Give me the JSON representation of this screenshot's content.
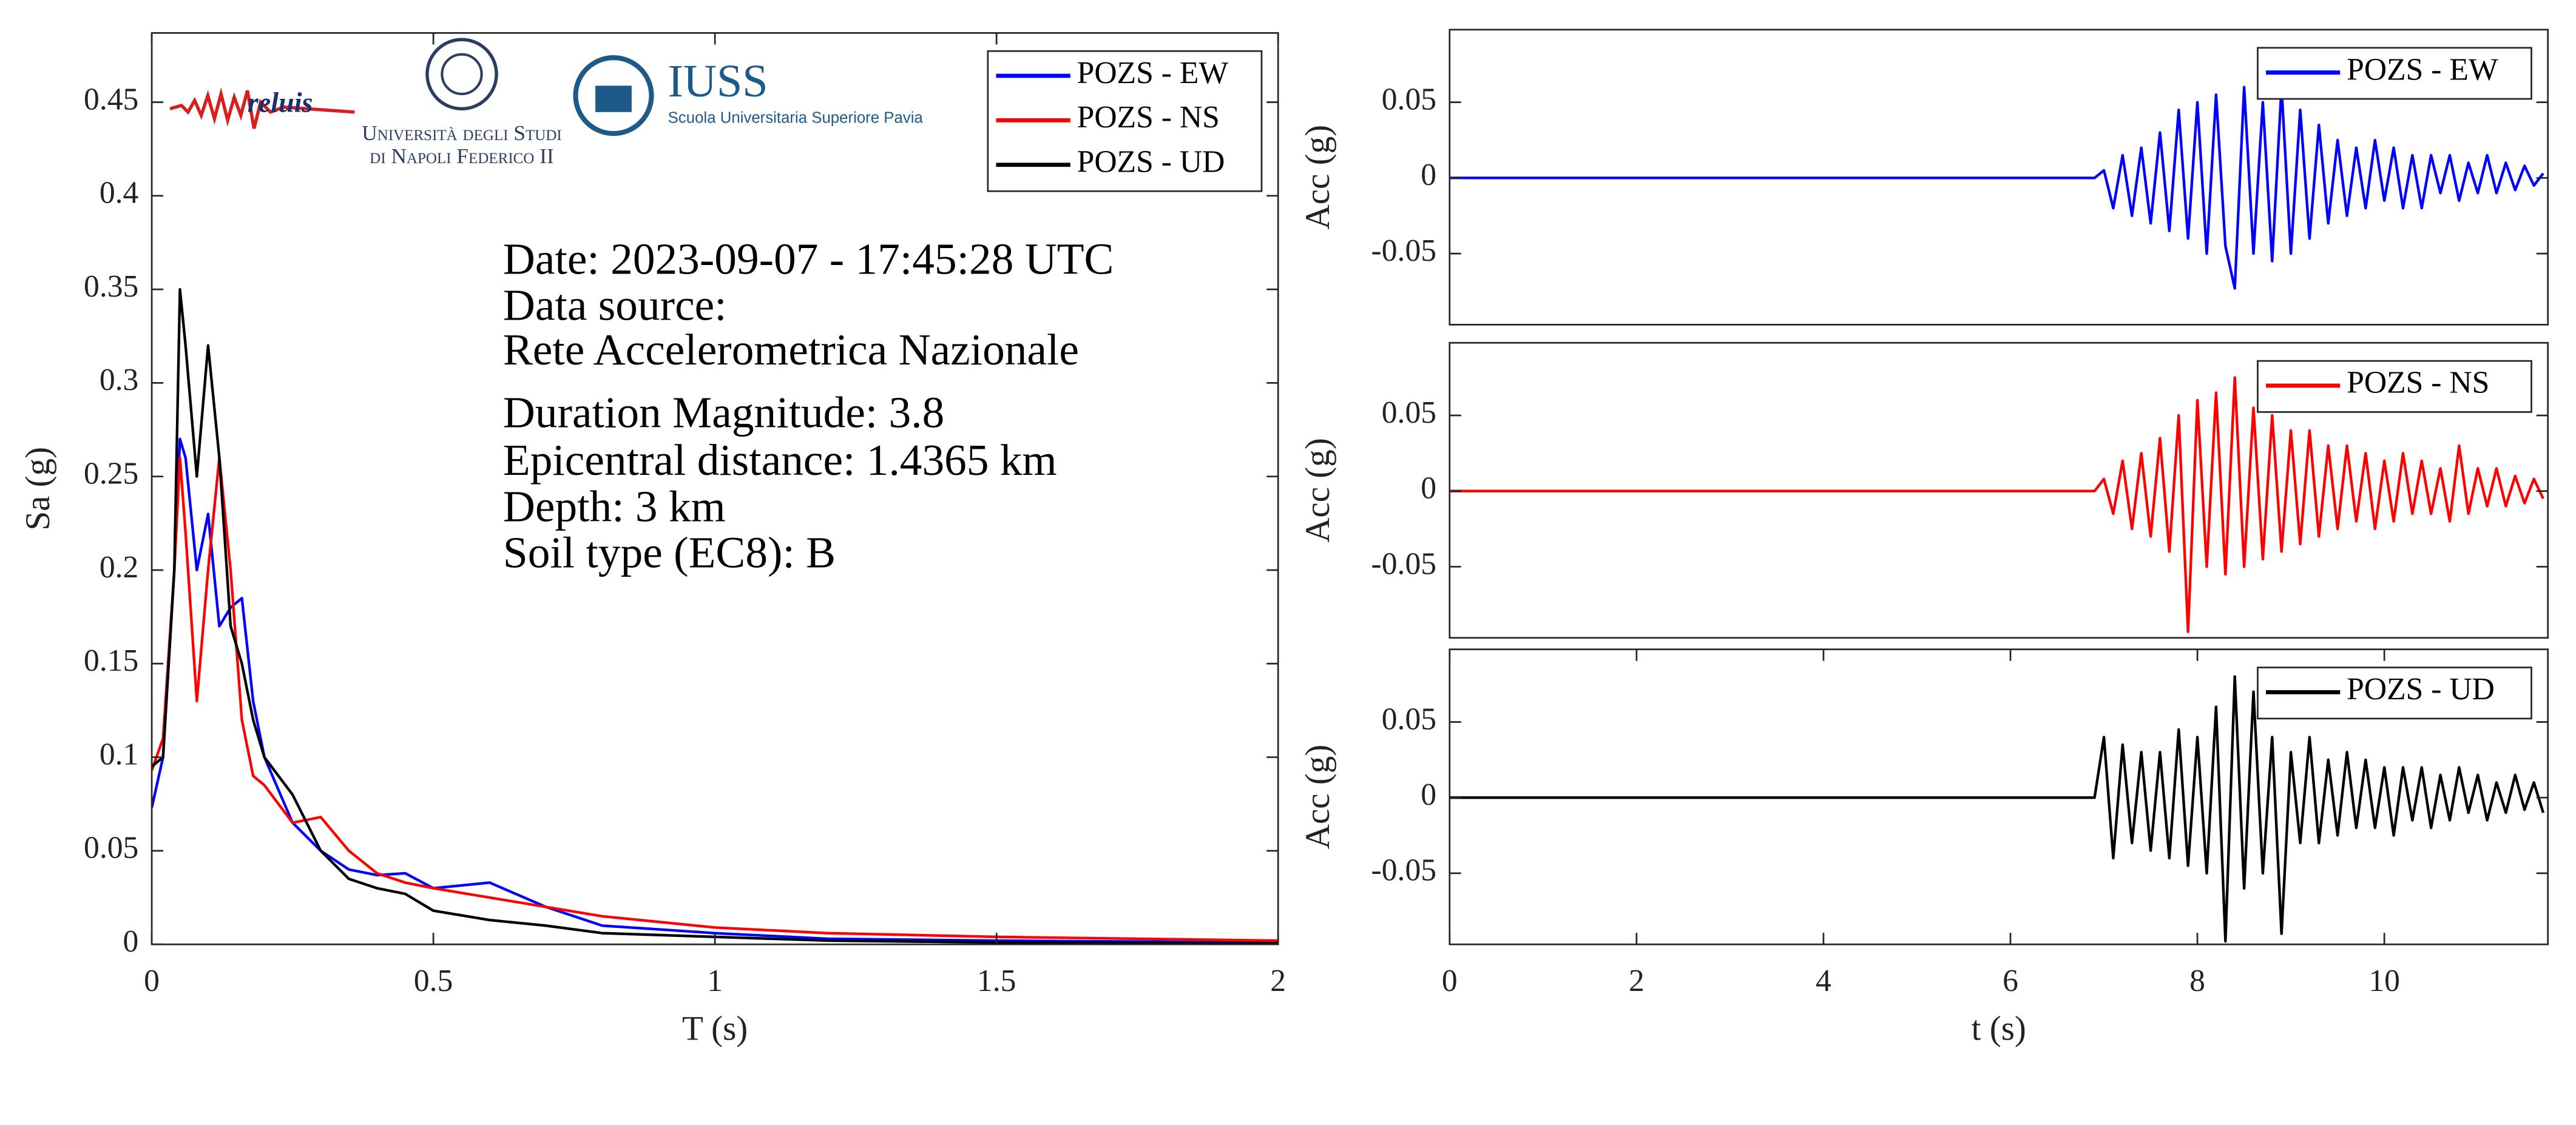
{
  "chart_data": [
    {
      "type": "line",
      "xlabel": "T (s)",
      "ylabel": "Sa (g)",
      "xlim": [
        0,
        2
      ],
      "ylim": [
        0,
        0.487
      ],
      "xticks": [
        0,
        0.5,
        1,
        1.5,
        2
      ],
      "yticks": [
        0,
        0.05,
        0.1,
        0.15,
        0.2,
        0.25,
        0.3,
        0.35,
        0.4,
        0.45
      ],
      "legend": "upper right",
      "annotations": [
        "Date: 2023-09-07 - 17:45:28 UTC",
        "Data source:",
        "Rete Accelerometrica Nazionale",
        "Duration Magnitude: 3.8",
        "Epicentral distance: 1.4365 km",
        "Depth: 3 km",
        "Soil type (EC8): B"
      ],
      "logos": [
        "reluis",
        "Università degli Studi",
        "di Napoli Federico II",
        "IUSS",
        "Scuola Universitaria Superiore Pavia"
      ],
      "x": [
        0,
        0.02,
        0.04,
        0.05,
        0.06,
        0.08,
        0.1,
        0.12,
        0.14,
        0.16,
        0.18,
        0.2,
        0.25,
        0.3,
        0.35,
        0.4,
        0.45,
        0.5,
        0.6,
        0.7,
        0.8,
        1.0,
        1.2,
        1.5,
        2.0
      ],
      "series": [
        {
          "name": "POZS - EW",
          "color": "#0000ff",
          "values": [
            0.073,
            0.1,
            0.2,
            0.27,
            0.26,
            0.2,
            0.23,
            0.17,
            0.18,
            0.185,
            0.13,
            0.1,
            0.065,
            0.05,
            0.04,
            0.037,
            0.038,
            0.03,
            0.033,
            0.02,
            0.01,
            0.006,
            0.003,
            0.002,
            0.001
          ]
        },
        {
          "name": "POZS - NS",
          "color": "#ff0000",
          "values": [
            0.093,
            0.11,
            0.2,
            0.26,
            0.22,
            0.13,
            0.2,
            0.26,
            0.2,
            0.12,
            0.09,
            0.085,
            0.065,
            0.068,
            0.05,
            0.038,
            0.033,
            0.03,
            0.025,
            0.02,
            0.015,
            0.009,
            0.006,
            0.004,
            0.002
          ]
        },
        {
          "name": "POZS - UD",
          "color": "#000000",
          "values": [
            0.095,
            0.1,
            0.2,
            0.35,
            0.32,
            0.25,
            0.32,
            0.26,
            0.17,
            0.15,
            0.12,
            0.1,
            0.08,
            0.05,
            0.035,
            0.03,
            0.027,
            0.018,
            0.013,
            0.01,
            0.006,
            0.004,
            0.002,
            0.001,
            0.0005
          ]
        }
      ]
    },
    {
      "type": "line",
      "ylabel": "Acc (g)",
      "xlim": [
        0,
        11.75
      ],
      "ylim": [
        -0.097,
        0.098
      ],
      "yticks": [
        -0.05,
        0,
        0.05
      ],
      "legend": "upper right",
      "x": [
        0,
        6.9,
        7.0,
        7.1,
        7.2,
        7.3,
        7.4,
        7.5,
        7.6,
        7.7,
        7.8,
        7.9,
        8.0,
        8.1,
        8.2,
        8.3,
        8.4,
        8.5,
        8.6,
        8.7,
        8.8,
        8.9,
        9.0,
        9.1,
        9.2,
        9.3,
        9.4,
        9.5,
        9.6,
        9.7,
        9.8,
        9.9,
        10.0,
        10.1,
        10.2,
        10.3,
        10.4,
        10.5,
        10.6,
        10.7,
        10.8,
        10.9,
        11.0,
        11.1,
        11.2,
        11.3,
        11.4,
        11.5,
        11.6,
        11.7
      ],
      "series": [
        {
          "name": "POZS - EW",
          "color": "#0000ff",
          "values": [
            0,
            0,
            0.005,
            -0.02,
            0.015,
            -0.025,
            0.02,
            -0.03,
            0.03,
            -0.035,
            0.045,
            -0.04,
            0.05,
            -0.05,
            0.055,
            -0.045,
            -0.073,
            0.06,
            -0.05,
            0.05,
            -0.055,
            0.06,
            -0.05,
            0.045,
            -0.04,
            0.035,
            -0.03,
            0.025,
            -0.025,
            0.02,
            -0.02,
            0.025,
            -0.015,
            0.02,
            -0.02,
            0.015,
            -0.02,
            0.015,
            -0.01,
            0.015,
            -0.015,
            0.01,
            -0.01,
            0.015,
            -0.01,
            0.01,
            -0.008,
            0.008,
            -0.005,
            0.003
          ]
        }
      ]
    },
    {
      "type": "line",
      "ylabel": "Acc (g)",
      "xlim": [
        0,
        11.75
      ],
      "ylim": [
        -0.097,
        0.098
      ],
      "yticks": [
        -0.05,
        0,
        0.05
      ],
      "legend": "upper right",
      "x": [
        0,
        6.9,
        7.0,
        7.1,
        7.2,
        7.3,
        7.4,
        7.5,
        7.6,
        7.7,
        7.8,
        7.9,
        8.0,
        8.1,
        8.2,
        8.3,
        8.4,
        8.5,
        8.6,
        8.7,
        8.8,
        8.9,
        9.0,
        9.1,
        9.2,
        9.3,
        9.4,
        9.5,
        9.6,
        9.7,
        9.8,
        9.9,
        10.0,
        10.1,
        10.2,
        10.3,
        10.4,
        10.5,
        10.6,
        10.7,
        10.8,
        10.9,
        11.0,
        11.1,
        11.2,
        11.3,
        11.4,
        11.5,
        11.6,
        11.7
      ],
      "series": [
        {
          "name": "POZS - NS",
          "color": "#ff0000",
          "values": [
            0,
            0,
            0.008,
            -0.015,
            0.02,
            -0.025,
            0.025,
            -0.03,
            0.035,
            -0.04,
            0.05,
            -0.093,
            0.06,
            -0.05,
            0.065,
            -0.055,
            0.075,
            -0.05,
            0.055,
            -0.045,
            0.05,
            -0.04,
            0.04,
            -0.035,
            0.04,
            -0.03,
            0.03,
            -0.025,
            0.03,
            -0.02,
            0.025,
            -0.025,
            0.02,
            -0.02,
            0.025,
            -0.015,
            0.02,
            -0.015,
            0.015,
            -0.02,
            0.03,
            -0.015,
            0.015,
            -0.01,
            0.015,
            -0.01,
            0.01,
            -0.008,
            0.008,
            -0.005
          ]
        }
      ]
    },
    {
      "type": "line",
      "xlabel": "t (s)",
      "ylabel": "Acc (g)",
      "xlim": [
        0,
        11.75
      ],
      "ylim": [
        -0.097,
        0.098
      ],
      "xticks": [
        0,
        2,
        4,
        6,
        8,
        10
      ],
      "yticks": [
        -0.05,
        0,
        0.05
      ],
      "legend": "upper right",
      "x": [
        0,
        6.9,
        7.0,
        7.1,
        7.2,
        7.3,
        7.4,
        7.5,
        7.6,
        7.7,
        7.8,
        7.9,
        8.0,
        8.1,
        8.2,
        8.3,
        8.4,
        8.5,
        8.6,
        8.7,
        8.8,
        8.9,
        9.0,
        9.1,
        9.2,
        9.3,
        9.4,
        9.5,
        9.6,
        9.7,
        9.8,
        9.9,
        10.0,
        10.1,
        10.2,
        10.3,
        10.4,
        10.5,
        10.6,
        10.7,
        10.8,
        10.9,
        11.0,
        11.1,
        11.2,
        11.3,
        11.4,
        11.5,
        11.6,
        11.7
      ],
      "series": [
        {
          "name": "POZS - UD",
          "color": "#000000",
          "values": [
            0,
            0,
            0.04,
            -0.04,
            0.035,
            -0.03,
            0.03,
            -0.035,
            0.03,
            -0.04,
            0.045,
            -0.045,
            0.04,
            -0.05,
            0.06,
            -0.095,
            0.08,
            -0.06,
            0.07,
            -0.05,
            0.04,
            -0.09,
            0.03,
            -0.03,
            0.04,
            -0.03,
            0.025,
            -0.025,
            0.03,
            -0.02,
            0.025,
            -0.02,
            0.02,
            -0.025,
            0.02,
            -0.015,
            0.02,
            -0.02,
            0.015,
            -0.015,
            0.02,
            -0.01,
            0.015,
            -0.015,
            0.01,
            -0.01,
            0.015,
            -0.008,
            0.01,
            -0.01
          ]
        }
      ]
    }
  ]
}
